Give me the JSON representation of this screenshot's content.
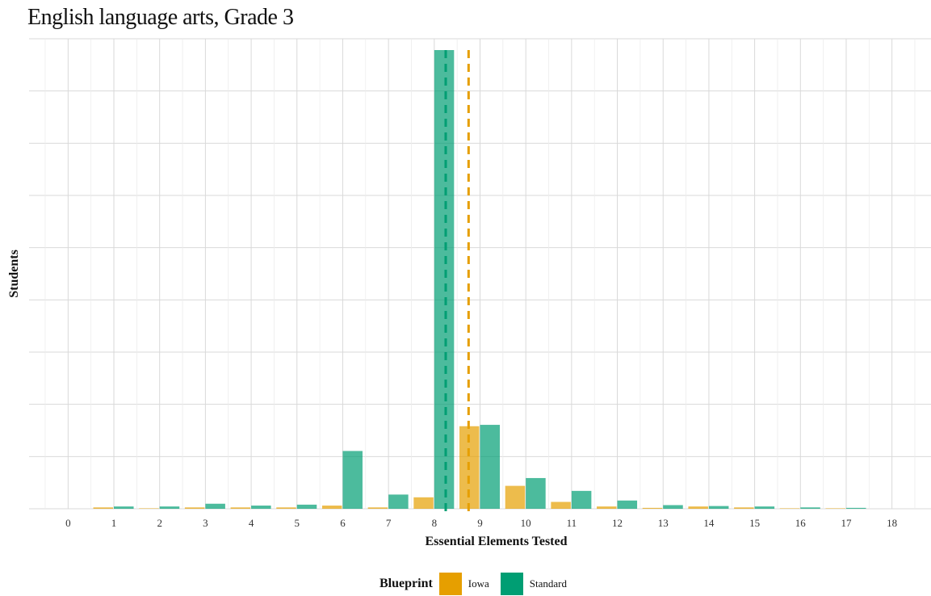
{
  "title": "English language arts, Grade 3",
  "chart_data": {
    "type": "bar",
    "xlabel": "Essential Elements Tested",
    "ylabel": "Students",
    "categories": [
      0,
      1,
      2,
      3,
      4,
      5,
      6,
      7,
      8,
      9,
      10,
      11,
      12,
      13,
      14,
      15,
      16,
      17,
      18
    ],
    "ylim": [
      0,
      1000
    ],
    "y_tick_labels_shown": false,
    "grid": true,
    "legend": {
      "title": "Blueprint",
      "position": "bottom"
    },
    "series": [
      {
        "name": "Iowa",
        "color": "#E69F00",
        "values": [
          0,
          3,
          1,
          3,
          3,
          3,
          7,
          3,
          25,
          180,
          50,
          15,
          5,
          2,
          5,
          3,
          1,
          1,
          0
        ]
      },
      {
        "name": "Standard",
        "color": "#009E73",
        "values": [
          0,
          5,
          5,
          11,
          7,
          9,
          126,
          31,
          1000,
          183,
          67,
          39,
          18,
          8,
          6,
          5,
          3,
          2,
          0
        ]
      }
    ],
    "vlines": [
      {
        "series": "Standard",
        "x": 8.25,
        "style": "dashed"
      },
      {
        "series": "Iowa",
        "x": 8.75,
        "style": "dashed"
      }
    ]
  }
}
